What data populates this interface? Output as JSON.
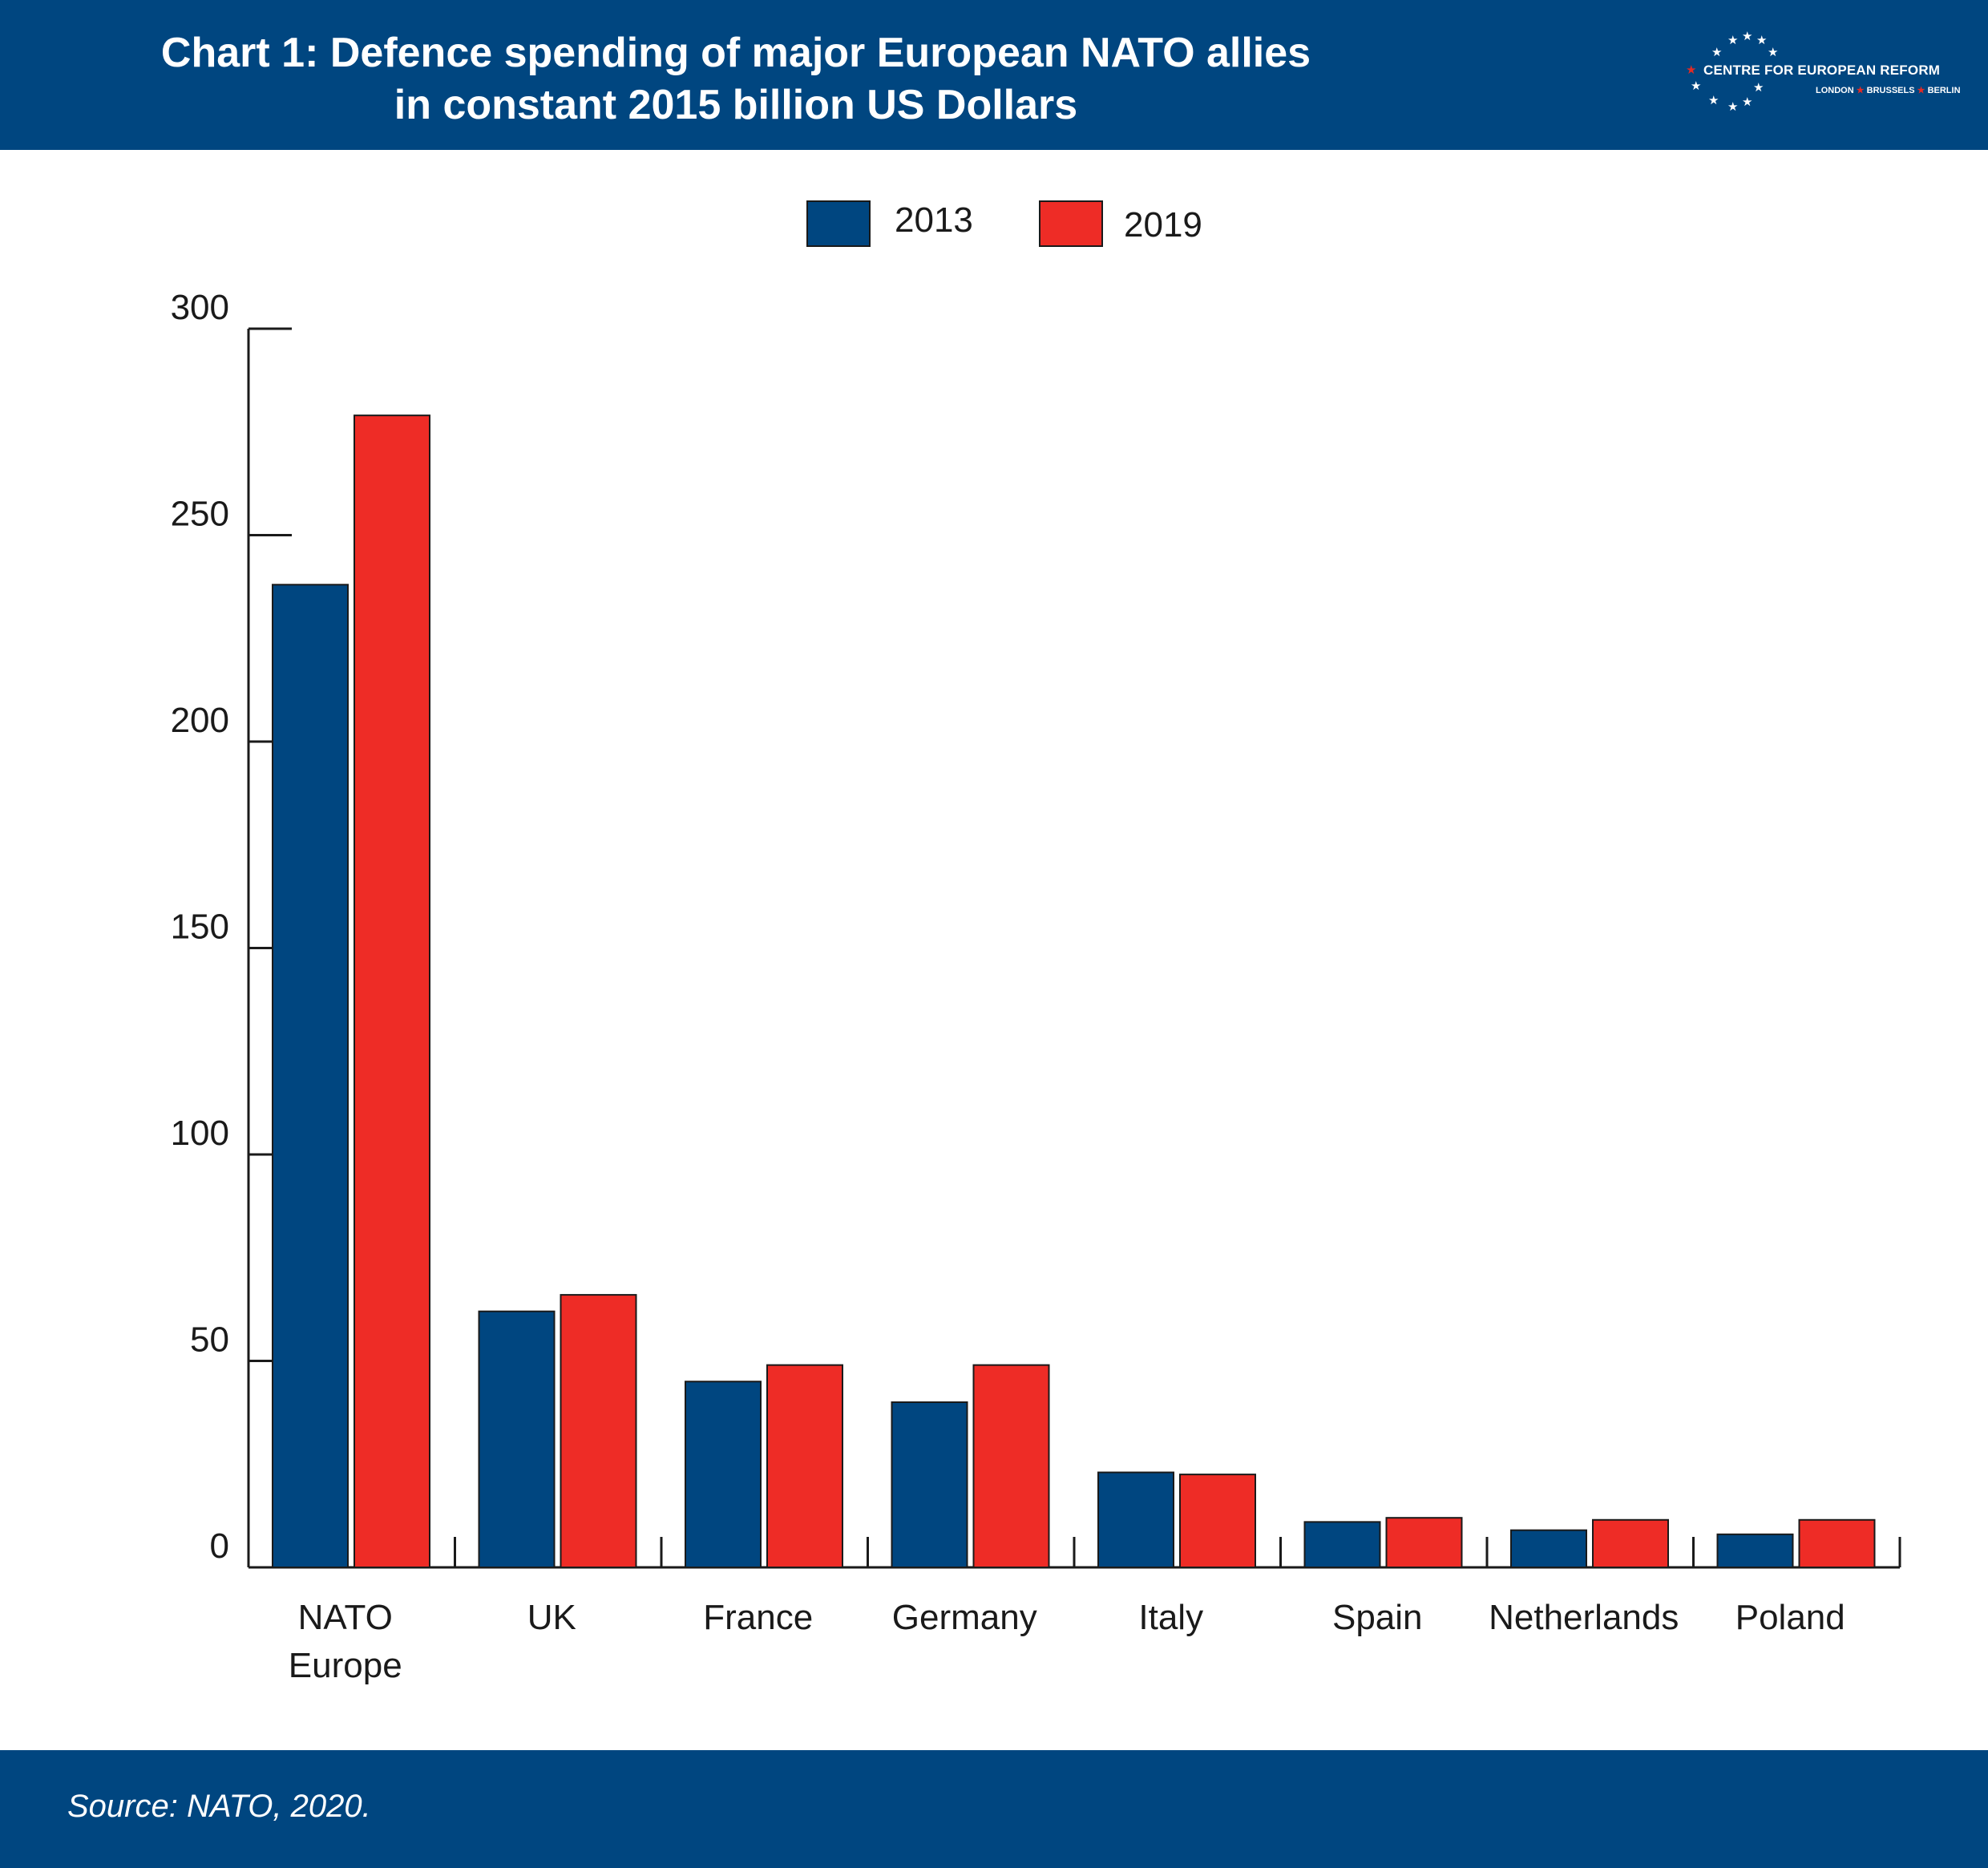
{
  "header": {
    "title_line1": "Chart 1: Defence spending of major European NATO allies",
    "title_line2": "in constant 2015 billion US Dollars"
  },
  "logo": {
    "name": "CENTRE FOR EUROPEAN REFORM",
    "city1": "LONDON",
    "city2": "BRUSSELS",
    "city3": "BERLIN"
  },
  "colors": {
    "brand_navy": "#004680",
    "series_2013": "#004680",
    "series_2019": "#EE2C26",
    "axis": "#1a1a1a"
  },
  "chart_data": {
    "type": "bar",
    "title": "Chart 1: Defence spending of major European NATO allies in constant 2015 billion US Dollars",
    "xlabel": "",
    "ylabel": "",
    "categories": [
      [
        "NATO",
        "Europe"
      ],
      [
        "UK"
      ],
      [
        "France"
      ],
      [
        "Germany"
      ],
      [
        "Italy"
      ],
      [
        "Spain"
      ],
      [
        "Netherlands"
      ],
      [
        "Poland"
      ]
    ],
    "series": [
      {
        "name": "2013",
        "color": "#004680",
        "values": [
          238,
          62,
          45,
          40,
          23,
          11,
          9,
          8
        ]
      },
      {
        "name": "2019",
        "color": "#EE2C26",
        "values": [
          279,
          66,
          49,
          49,
          22.5,
          12,
          11.5,
          11.5
        ]
      }
    ],
    "ylim": [
      0,
      300
    ],
    "yticks": [
      0,
      50,
      100,
      150,
      200,
      250,
      300
    ],
    "grid": false,
    "legend_position": "top-center"
  },
  "footer": {
    "source": "Source: NATO, 2020."
  }
}
